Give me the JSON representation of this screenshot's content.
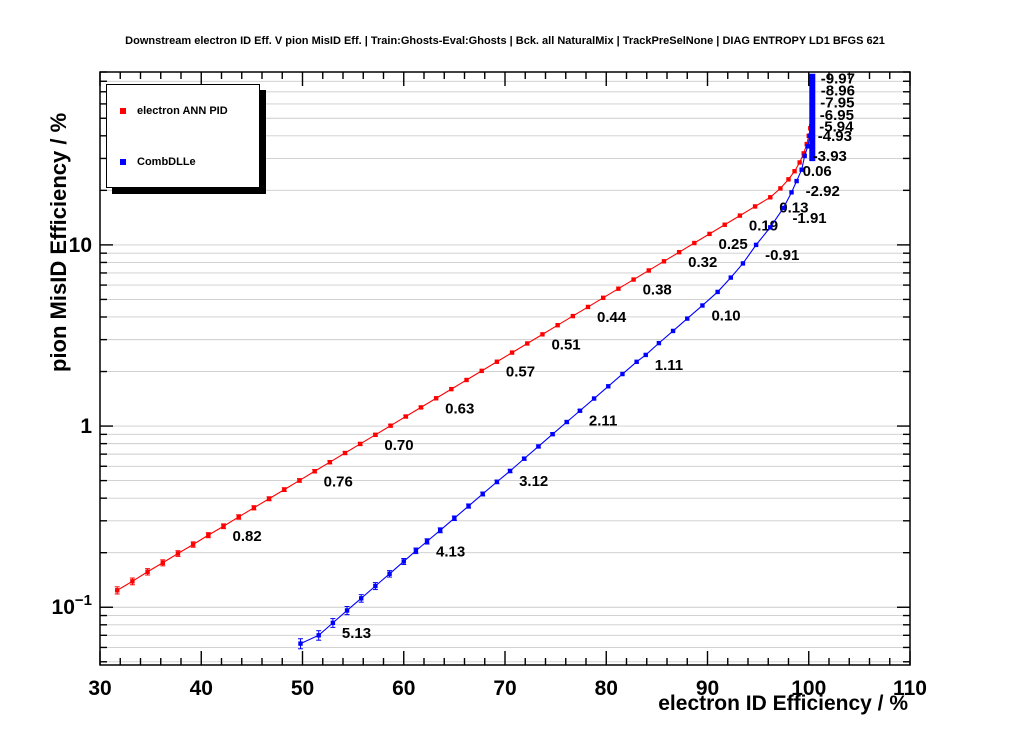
{
  "title": "Downstream electron ID Eff. V pion MisID Eff. | Train:Ghosts-Eval:Ghosts | Bck. all NaturalMix | TrackPreSelNone | DIAG ENTROPY LD1 BFGS 621",
  "axes": {
    "x_label": "electron ID Efficiency / %",
    "y_label": "pion MisID Efficiency / %"
  },
  "legend": {
    "entries": [
      {
        "label": "electron ANN PID",
        "color": "#ff0000"
      },
      {
        "label": "CombDLLe",
        "color": "#0000ff"
      }
    ]
  },
  "chart_data": {
    "type": "scatter",
    "title": "Downstream electron ID Eff. V pion MisID Eff. | Train:Ghosts-Eval:Ghosts | Bck. all NaturalMix | TrackPreSelNone | DIAG ENTROPY LD1 BFGS 621",
    "xlabel": "electron ID Efficiency / %",
    "ylabel": "pion MisID Efficiency / %",
    "xlim": [
      30,
      110
    ],
    "x_major_tick_step": 10,
    "x_minor_tick_step": 2,
    "x_tick_labels": [
      "30",
      "40",
      "50",
      "60",
      "70",
      "80",
      "90",
      "100",
      "110"
    ],
    "ylog": true,
    "ylim": [
      0.048,
      90
    ],
    "y_major_ticks": [
      0.1,
      1,
      10
    ],
    "grid": "horizontal",
    "legend_position": "top-left",
    "series": [
      {
        "name": "electron ANN PID",
        "color": "#ff0000",
        "marker": "square",
        "points": [
          [
            31.7,
            0.124
          ],
          [
            33.2,
            0.139
          ],
          [
            34.7,
            0.157
          ],
          [
            36.2,
            0.176
          ],
          [
            37.7,
            0.198
          ],
          [
            39.2,
            0.222
          ],
          [
            40.7,
            0.25
          ],
          [
            42.2,
            0.28,
            "0.82"
          ],
          [
            43.7,
            0.315
          ],
          [
            45.2,
            0.354
          ],
          [
            46.7,
            0.397
          ],
          [
            48.2,
            0.446
          ],
          [
            49.7,
            0.501
          ],
          [
            51.2,
            0.563,
            "0.76"
          ],
          [
            52.7,
            0.632
          ],
          [
            54.2,
            0.71
          ],
          [
            55.7,
            0.797
          ],
          [
            57.2,
            0.895,
            "0.70"
          ],
          [
            58.7,
            1.005
          ],
          [
            60.2,
            1.129
          ],
          [
            61.7,
            1.268
          ],
          [
            63.2,
            1.424,
            "0.63"
          ],
          [
            64.7,
            1.599
          ],
          [
            66.2,
            1.796
          ],
          [
            67.7,
            2.017
          ],
          [
            69.2,
            2.265,
            "0.57"
          ],
          [
            70.7,
            2.544
          ],
          [
            72.2,
            2.857
          ],
          [
            73.7,
            3.208,
            "0.51"
          ],
          [
            75.2,
            3.603
          ],
          [
            76.7,
            4.046
          ],
          [
            78.2,
            4.544,
            "0.44"
          ],
          [
            79.7,
            5.103
          ],
          [
            81.2,
            5.731
          ],
          [
            82.7,
            6.436,
            "0.38"
          ],
          [
            84.2,
            7.227
          ],
          [
            85.7,
            8.116
          ],
          [
            87.2,
            9.115,
            "0.32"
          ],
          [
            88.7,
            10.24
          ],
          [
            90.2,
            11.5,
            "0.25"
          ],
          [
            91.7,
            12.92
          ],
          [
            93.2,
            14.51,
            "0.19"
          ],
          [
            94.7,
            16.3
          ],
          [
            96.2,
            18.31,
            "0.13"
          ],
          [
            97.2,
            20.5
          ],
          [
            98.0,
            23.0
          ],
          [
            98.6,
            25.5,
            "0.06"
          ],
          [
            99.1,
            28.5
          ],
          [
            99.5,
            32
          ],
          [
            99.8,
            36
          ],
          [
            100.0,
            40
          ],
          [
            100.15,
            44
          ]
        ]
      },
      {
        "name": "CombDLLe",
        "color": "#0000ff",
        "marker": "square",
        "vline": {
          "x": 100.35,
          "y1": 29,
          "y2": 88,
          "width": 6
        },
        "points": [
          [
            49.8,
            0.063
          ],
          [
            51.6,
            0.07
          ],
          [
            53.0,
            0.082,
            "5.13"
          ],
          [
            54.4,
            0.096
          ],
          [
            55.8,
            0.112
          ],
          [
            57.2,
            0.131
          ],
          [
            58.6,
            0.153
          ],
          [
            60.0,
            0.179
          ],
          [
            61.2,
            0.205
          ],
          [
            62.3,
            0.231,
            "4.13"
          ],
          [
            63.6,
            0.266
          ],
          [
            65.0,
            0.31
          ],
          [
            66.4,
            0.362
          ],
          [
            67.8,
            0.422
          ],
          [
            69.2,
            0.492
          ],
          [
            70.5,
            0.565,
            "3.12"
          ],
          [
            71.9,
            0.661
          ],
          [
            73.3,
            0.772
          ],
          [
            74.7,
            0.902
          ],
          [
            76.1,
            1.053
          ],
          [
            77.4,
            1.215,
            "2.11"
          ],
          [
            78.8,
            1.419
          ],
          [
            80.2,
            1.658
          ],
          [
            81.6,
            1.937
          ],
          [
            83.0,
            2.263
          ],
          [
            83.9,
            2.47,
            "1.11"
          ],
          [
            85.2,
            2.87
          ],
          [
            86.6,
            3.35
          ],
          [
            88.0,
            3.92
          ],
          [
            89.5,
            4.63,
            "0.10"
          ],
          [
            91.0,
            5.5
          ],
          [
            92.3,
            6.6
          ],
          [
            93.5,
            7.9
          ],
          [
            94.8,
            10.0,
            "-0.91"
          ],
          [
            96.2,
            12.5
          ],
          [
            97.5,
            16.0,
            "-1.91"
          ],
          [
            98.3,
            19.5
          ],
          [
            98.8,
            22.5,
            "-2.92"
          ],
          [
            99.3,
            26
          ],
          [
            99.6,
            31,
            "-3.93"
          ],
          [
            99.9,
            35
          ],
          [
            100.1,
            40,
            "-4.93"
          ],
          [
            100.25,
            45,
            "-5.94"
          ],
          [
            100.3,
            52,
            "-6.95"
          ],
          [
            100.35,
            61,
            "-7.95"
          ],
          [
            100.4,
            71,
            "-8.96"
          ],
          [
            100.4,
            83,
            "-9.97"
          ]
        ]
      }
    ]
  }
}
